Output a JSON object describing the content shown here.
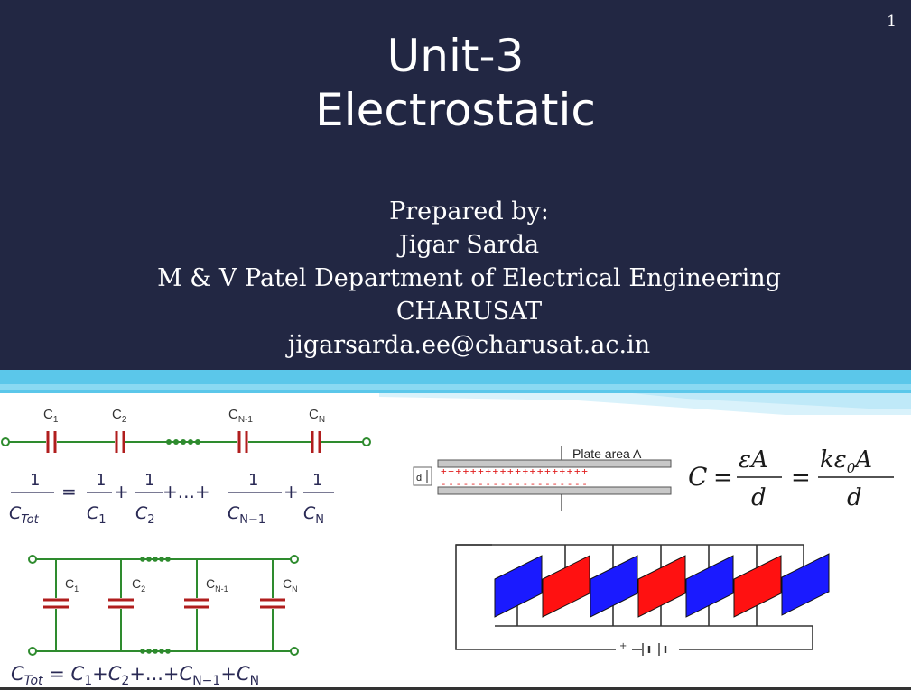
{
  "slide": {
    "page_number": "1",
    "title_line1": "Unit-3",
    "title_line2": "Electrostatic",
    "prepared_label": "Prepared by:",
    "author_name": "Jigar Sarda",
    "department": "M & V Patel Department of Electrical Engineering",
    "institution": "CHARUSAT",
    "email": "jigarsarda.ee@charusat.ac.in"
  },
  "series_circuit": {
    "labels": [
      "C1",
      "C2",
      "CN-1",
      "CN"
    ]
  },
  "parallel_circuit": {
    "labels": [
      "C1",
      "C2",
      "CN-1",
      "CN"
    ]
  },
  "plate_capacitor": {
    "area_label": "Plate area A",
    "gap_label": "d",
    "formula": "C = εA/d = kε0A/d"
  },
  "colors": {
    "background_top": "#222743",
    "accent_stripe": "#5bc7ea",
    "plate_blue": "#1a1aff",
    "plate_red": "#ff1111",
    "wire_green": "#2e8b2e",
    "capacitor_red": "#b01e1e"
  }
}
